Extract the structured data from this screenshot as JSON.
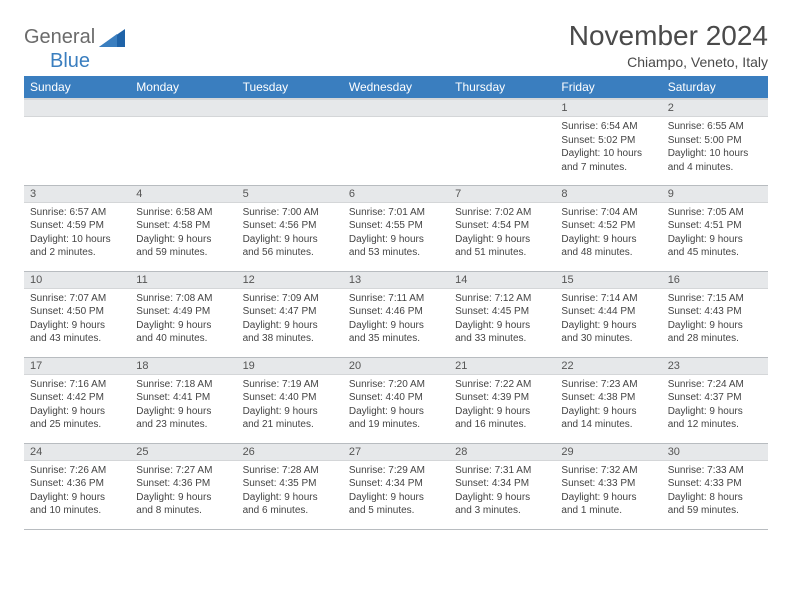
{
  "logo": {
    "text1": "General",
    "text2": "Blue"
  },
  "title": "November 2024",
  "location": "Chiampo, Veneto, Italy",
  "colors": {
    "header_bg": "#3a7ebf",
    "header_text": "#ffffff",
    "daynum_bg": "#e6e8ea",
    "border": "#b8bcc0",
    "title_color": "#4a4a4a",
    "logo_gray": "#6b6b6b",
    "logo_blue": "#3a7ebf"
  },
  "weekdays": [
    "Sunday",
    "Monday",
    "Tuesday",
    "Wednesday",
    "Thursday",
    "Friday",
    "Saturday"
  ],
  "grid": [
    [
      null,
      null,
      null,
      null,
      null,
      {
        "n": "1",
        "sr": "6:54 AM",
        "ss": "5:02 PM",
        "dl": "10 hours and 7 minutes."
      },
      {
        "n": "2",
        "sr": "6:55 AM",
        "ss": "5:00 PM",
        "dl": "10 hours and 4 minutes."
      }
    ],
    [
      {
        "n": "3",
        "sr": "6:57 AM",
        "ss": "4:59 PM",
        "dl": "10 hours and 2 minutes."
      },
      {
        "n": "4",
        "sr": "6:58 AM",
        "ss": "4:58 PM",
        "dl": "9 hours and 59 minutes."
      },
      {
        "n": "5",
        "sr": "7:00 AM",
        "ss": "4:56 PM",
        "dl": "9 hours and 56 minutes."
      },
      {
        "n": "6",
        "sr": "7:01 AM",
        "ss": "4:55 PM",
        "dl": "9 hours and 53 minutes."
      },
      {
        "n": "7",
        "sr": "7:02 AM",
        "ss": "4:54 PM",
        "dl": "9 hours and 51 minutes."
      },
      {
        "n": "8",
        "sr": "7:04 AM",
        "ss": "4:52 PM",
        "dl": "9 hours and 48 minutes."
      },
      {
        "n": "9",
        "sr": "7:05 AM",
        "ss": "4:51 PM",
        "dl": "9 hours and 45 minutes."
      }
    ],
    [
      {
        "n": "10",
        "sr": "7:07 AM",
        "ss": "4:50 PM",
        "dl": "9 hours and 43 minutes."
      },
      {
        "n": "11",
        "sr": "7:08 AM",
        "ss": "4:49 PM",
        "dl": "9 hours and 40 minutes."
      },
      {
        "n": "12",
        "sr": "7:09 AM",
        "ss": "4:47 PM",
        "dl": "9 hours and 38 minutes."
      },
      {
        "n": "13",
        "sr": "7:11 AM",
        "ss": "4:46 PM",
        "dl": "9 hours and 35 minutes."
      },
      {
        "n": "14",
        "sr": "7:12 AM",
        "ss": "4:45 PM",
        "dl": "9 hours and 33 minutes."
      },
      {
        "n": "15",
        "sr": "7:14 AM",
        "ss": "4:44 PM",
        "dl": "9 hours and 30 minutes."
      },
      {
        "n": "16",
        "sr": "7:15 AM",
        "ss": "4:43 PM",
        "dl": "9 hours and 28 minutes."
      }
    ],
    [
      {
        "n": "17",
        "sr": "7:16 AM",
        "ss": "4:42 PM",
        "dl": "9 hours and 25 minutes."
      },
      {
        "n": "18",
        "sr": "7:18 AM",
        "ss": "4:41 PM",
        "dl": "9 hours and 23 minutes."
      },
      {
        "n": "19",
        "sr": "7:19 AM",
        "ss": "4:40 PM",
        "dl": "9 hours and 21 minutes."
      },
      {
        "n": "20",
        "sr": "7:20 AM",
        "ss": "4:40 PM",
        "dl": "9 hours and 19 minutes."
      },
      {
        "n": "21",
        "sr": "7:22 AM",
        "ss": "4:39 PM",
        "dl": "9 hours and 16 minutes."
      },
      {
        "n": "22",
        "sr": "7:23 AM",
        "ss": "4:38 PM",
        "dl": "9 hours and 14 minutes."
      },
      {
        "n": "23",
        "sr": "7:24 AM",
        "ss": "4:37 PM",
        "dl": "9 hours and 12 minutes."
      }
    ],
    [
      {
        "n": "24",
        "sr": "7:26 AM",
        "ss": "4:36 PM",
        "dl": "9 hours and 10 minutes."
      },
      {
        "n": "25",
        "sr": "7:27 AM",
        "ss": "4:36 PM",
        "dl": "9 hours and 8 minutes."
      },
      {
        "n": "26",
        "sr": "7:28 AM",
        "ss": "4:35 PM",
        "dl": "9 hours and 6 minutes."
      },
      {
        "n": "27",
        "sr": "7:29 AM",
        "ss": "4:34 PM",
        "dl": "9 hours and 5 minutes."
      },
      {
        "n": "28",
        "sr": "7:31 AM",
        "ss": "4:34 PM",
        "dl": "9 hours and 3 minutes."
      },
      {
        "n": "29",
        "sr": "7:32 AM",
        "ss": "4:33 PM",
        "dl": "9 hours and 1 minute."
      },
      {
        "n": "30",
        "sr": "7:33 AM",
        "ss": "4:33 PM",
        "dl": "8 hours and 59 minutes."
      }
    ]
  ],
  "labels": {
    "sunrise": "Sunrise:",
    "sunset": "Sunset:",
    "daylight": "Daylight:"
  }
}
